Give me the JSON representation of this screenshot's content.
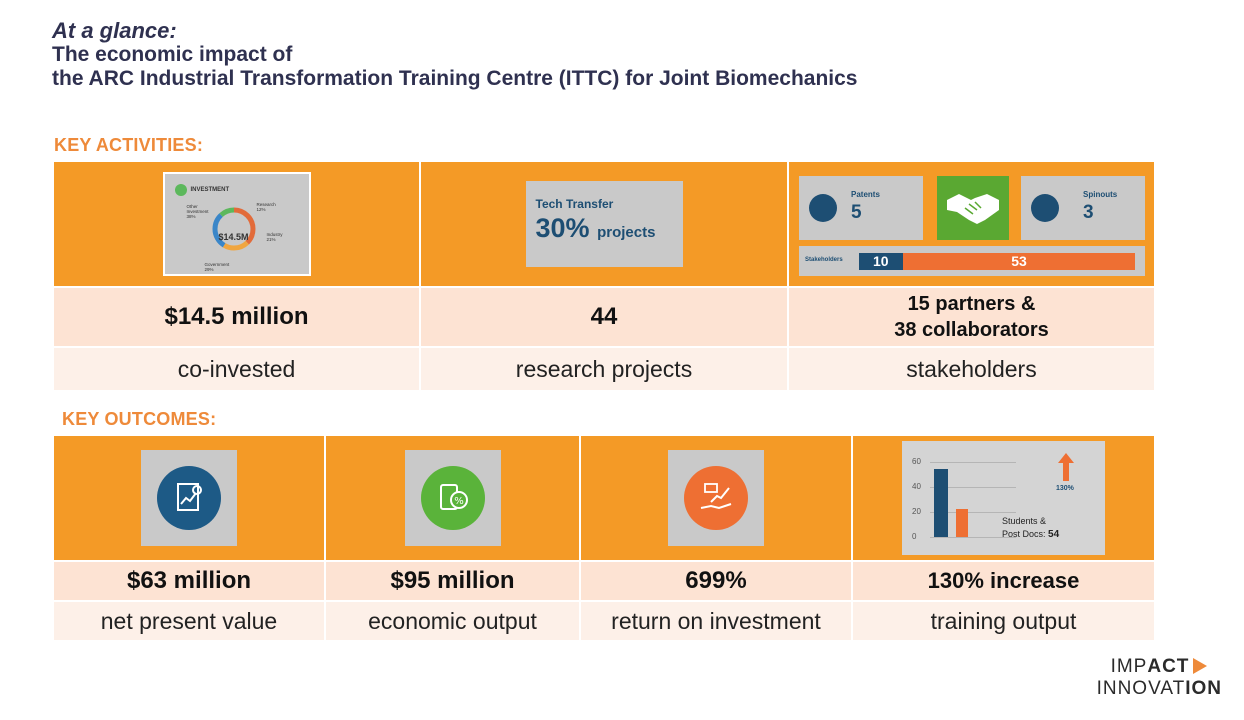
{
  "header": {
    "lead": "At a glance:",
    "line1": "The economic impact of",
    "line2": "the ARC Industrial Transformation Training Centre (ITTC) for Joint Biomechanics"
  },
  "activities": {
    "title": "KEY ACTIVITIES:",
    "investment_card": {
      "title": "INVESTMENT",
      "center": "$14.5M",
      "labels": {
        "research": "Research\n12%",
        "industry": "Industry\n21%",
        "government": "Government\n29%",
        "other": "Other\nInvestment\n38%"
      }
    },
    "tech_card": {
      "title": "Tech Transfer",
      "pct": "30%",
      "unit": "projects"
    },
    "patents": {
      "label": "Patents",
      "value": "5"
    },
    "spinouts": {
      "label": "Spinouts",
      "value": "3"
    },
    "stakeholders_bar": {
      "label": "Stakeholders",
      "a": "10",
      "b": "53"
    },
    "values": [
      "$14.5 million",
      "44",
      "15 partners &\n38 collaborators"
    ],
    "labels": [
      "co-invested",
      "research projects",
      "stakeholders"
    ]
  },
  "outcomes": {
    "title": "KEY OUTCOMES:",
    "values": [
      "$63 million",
      "$95 million",
      "699%",
      "130% increase"
    ],
    "labels": [
      "net present value",
      "economic output",
      "return on investment",
      "training output"
    ],
    "training_card": {
      "ticks": [
        "60",
        "40",
        "20",
        "0"
      ],
      "pct": "130%",
      "students_label": "Students &",
      "postdocs_label": "Post Docs:",
      "postdocs_value": "54"
    }
  },
  "logo": {
    "line1_a": "IMP",
    "line1_b": "ACT",
    "line2_a": "INNOVAT",
    "line2_b": "ION"
  },
  "colors": {
    "orange": "#f49a26",
    "navy": "#1d4e73",
    "accent": "#ee6f33",
    "green": "#5aa832"
  }
}
